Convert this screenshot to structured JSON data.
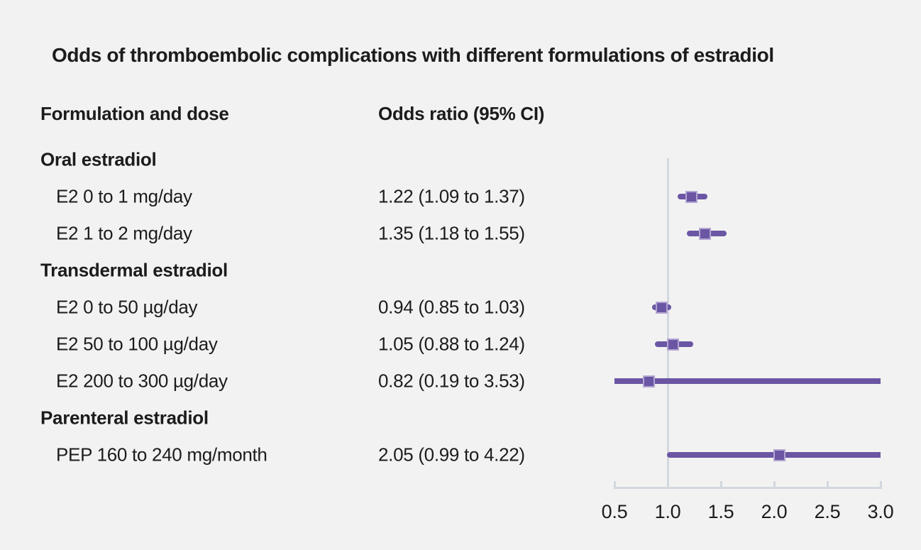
{
  "chart_data": {
    "type": "scatter",
    "subtype": "forest-plot",
    "title": "Odds of thromboembolic complications with different formulations of estradiol",
    "columns": [
      "Formulation and dose",
      "Odds ratio (95% CI)"
    ],
    "rows": [
      {
        "type": "section",
        "label": "Oral estradiol"
      },
      {
        "type": "item",
        "label": "E2 0 to 1 mg/day",
        "value_text": "1.22 (1.09 to 1.37)",
        "est": 1.22,
        "lo": 1.09,
        "hi": 1.37
      },
      {
        "type": "item",
        "label": "E2 1 to 2 mg/day",
        "value_text": "1.35 (1.18 to 1.55)",
        "est": 1.35,
        "lo": 1.18,
        "hi": 1.55
      },
      {
        "type": "section",
        "label": "Transdermal estradiol"
      },
      {
        "type": "item",
        "label": "E2 0 to 50 µg/day",
        "value_text": "0.94 (0.85 to 1.03)",
        "est": 0.94,
        "lo": 0.85,
        "hi": 1.03
      },
      {
        "type": "item",
        "label": "E2 50 to 100 µg/day",
        "value_text": "1.05 (0.88 to 1.24)",
        "est": 1.05,
        "lo": 0.88,
        "hi": 1.24
      },
      {
        "type": "item",
        "label": "E2 200 to 300 µg/day",
        "value_text": "0.82 (0.19 to 3.53)",
        "est": 0.82,
        "lo": 0.19,
        "hi": 3.53
      },
      {
        "type": "section",
        "label": "Parenteral estradiol"
      },
      {
        "type": "item",
        "label": "PEP 160 to 240 mg/month",
        "value_text": "2.05 (0.99 to 4.22)",
        "est": 2.05,
        "lo": 0.99,
        "hi": 4.22
      }
    ],
    "x_axis": {
      "ticks": [
        0.5,
        1.0,
        1.5,
        2.0,
        2.5,
        3.0
      ],
      "tick_labels": [
        "0.5",
        "1.0",
        "1.5",
        "2.0",
        "2.5",
        "3.0"
      ],
      "xlim": [
        0.5,
        3.0
      ],
      "reference_line": 1.0
    },
    "legend": null,
    "colors": {
      "marker": "#6b56a4",
      "marker_border": "#b3a5d2",
      "ci_line": "#6b56a4",
      "axis": "#d3d7de",
      "background": "#f2f2f2",
      "text": "#1c1c1c"
    }
  }
}
